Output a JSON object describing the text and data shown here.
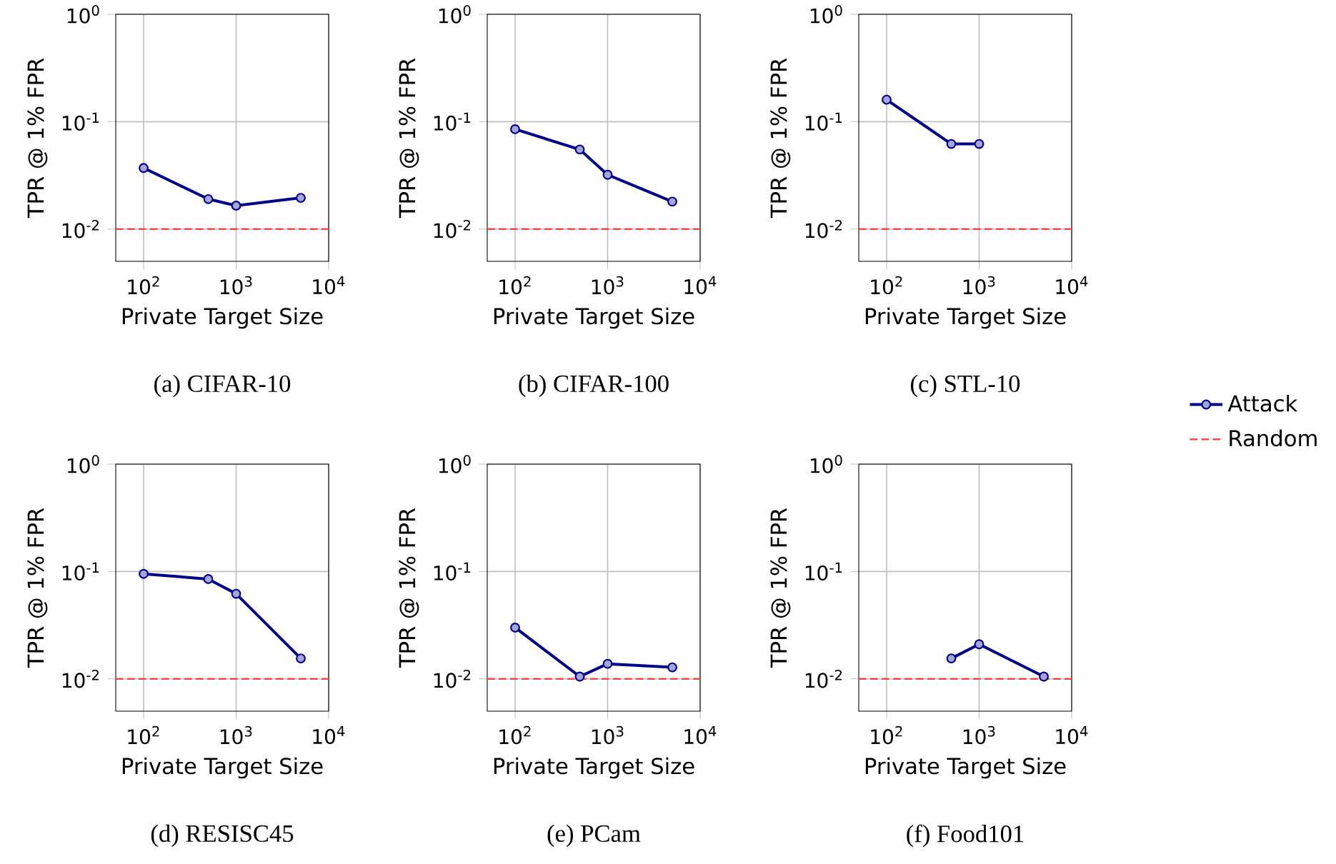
{
  "chart_data": [
    {
      "type": "line",
      "title": "(a) CIFAR-10",
      "xlabel": "Private Target Size",
      "ylabel": "TPR @ 1% FPR",
      "x": [
        100,
        500,
        1000,
        5000
      ],
      "series": [
        {
          "color": "#00008b",
          "values": [
            0.037,
            0.019,
            0.0165,
            0.0195
          ]
        }
      ],
      "xlim": [
        50,
        10000
      ],
      "ylim": [
        0.005,
        1
      ],
      "xticks": [
        {
          "value": 100,
          "label": "10$^{2}$"
        },
        {
          "value": 1000,
          "label": "10$^{3}$"
        },
        {
          "value": 10000,
          "label": "10$^{4}$"
        }
      ],
      "yticks": [
        {
          "value": 0.01,
          "label": "10$^{-2}$"
        },
        {
          "value": 0.1,
          "label": "10$^{-1}$"
        },
        {
          "value": 1,
          "label": "10$^{0}$"
        }
      ],
      "log": "xy",
      "grid": true,
      "marker": "circle",
      "ref_lines": [
        {
          "axis": "y",
          "value": 0.01,
          "color": "#f04a4a",
          "line_style": "dashed"
        }
      ]
    },
    {
      "type": "line",
      "title": "(b) CIFAR-100",
      "xlabel": "Private Target Size",
      "ylabel": "TPR @ 1% FPR",
      "x": [
        100,
        500,
        1000,
        5000
      ],
      "series": [
        {
          "color": "#00008b",
          "values": [
            0.085,
            0.055,
            0.032,
            0.018
          ]
        }
      ],
      "xlim": [
        50,
        10000
      ],
      "ylim": [
        0.005,
        1
      ],
      "xticks": [
        {
          "value": 100,
          "label": "10$^{2}$"
        },
        {
          "value": 1000,
          "label": "10$^{3}$"
        },
        {
          "value": 10000,
          "label": "10$^{4}$"
        }
      ],
      "yticks": [
        {
          "value": 0.01,
          "label": "10$^{-2}$"
        },
        {
          "value": 0.1,
          "label": "10$^{-1}$"
        },
        {
          "value": 1,
          "label": "10$^{0}$"
        }
      ],
      "log": "xy",
      "grid": true,
      "marker": "circle",
      "ref_lines": [
        {
          "axis": "y",
          "value": 0.01,
          "color": "#f04a4a",
          "line_style": "dashed"
        }
      ]
    },
    {
      "type": "line",
      "title": "(c) STL-10",
      "xlabel": "Private Target Size",
      "ylabel": "TPR @ 1% FPR",
      "series": [
        {
          "name": "Attack",
          "color": "#00008b",
          "x": [
            100,
            500,
            1000
          ],
          "values": [
            0.16,
            0.062,
            0.062
          ]
        }
      ],
      "xlim": [
        50,
        10000
      ],
      "ylim": [
        0.005,
        1
      ],
      "xticks": [
        {
          "value": 100,
          "label": "10$^{2}$"
        },
        {
          "value": 1000,
          "label": "10$^{3}$"
        },
        {
          "value": 10000,
          "label": "10$^{4}$"
        }
      ],
      "yticks": [
        {
          "value": 0.01,
          "label": "10$^{-2}$"
        },
        {
          "value": 0.1,
          "label": "10$^{-1}$"
        },
        {
          "value": 1,
          "label": "10$^{0}$"
        }
      ],
      "log": "xy",
      "grid": true,
      "marker": "circle",
      "legend": "right",
      "ref_lines": [
        {
          "axis": "y",
          "value": 0.01,
          "color": "#f04a4a",
          "line_style": "dashed",
          "label": "Random"
        }
      ]
    },
    {
      "type": "line",
      "title": "(d) RESISC45",
      "xlabel": "Private Target Size",
      "ylabel": "TPR @ 1% FPR",
      "x": [
        100,
        500,
        1000,
        5000
      ],
      "series": [
        {
          "color": "#00008b",
          "values": [
            0.095,
            0.085,
            0.062,
            0.0155
          ]
        }
      ],
      "xlim": [
        50,
        10000
      ],
      "ylim": [
        0.005,
        1
      ],
      "xticks": [
        {
          "value": 100,
          "label": "10$^{2}$"
        },
        {
          "value": 1000,
          "label": "10$^{3}$"
        },
        {
          "value": 10000,
          "label": "10$^{4}$"
        }
      ],
      "yticks": [
        {
          "value": 0.01,
          "label": "10$^{-2}$"
        },
        {
          "value": 0.1,
          "label": "10$^{-1}$"
        },
        {
          "value": 1,
          "label": "10$^{0}$"
        }
      ],
      "log": "xy",
      "grid": true,
      "marker": "circle",
      "ref_lines": [
        {
          "axis": "y",
          "value": 0.01,
          "color": "#f04a4a",
          "line_style": "dashed"
        }
      ]
    },
    {
      "type": "line",
      "title": "(e) PCam",
      "xlabel": "Private Target Size",
      "ylabel": "TPR @ 1% FPR",
      "x": [
        100,
        500,
        1000,
        5000
      ],
      "series": [
        {
          "color": "#00008b",
          "values": [
            0.03,
            0.0105,
            0.0138,
            0.0128
          ]
        }
      ],
      "xlim": [
        50,
        10000
      ],
      "ylim": [
        0.005,
        1
      ],
      "xticks": [
        {
          "value": 100,
          "label": "10$^{2}$"
        },
        {
          "value": 1000,
          "label": "10$^{3}$"
        },
        {
          "value": 10000,
          "label": "10$^{4}$"
        }
      ],
      "yticks": [
        {
          "value": 0.01,
          "label": "10$^{-2}$"
        },
        {
          "value": 0.1,
          "label": "10$^{-1}$"
        },
        {
          "value": 1,
          "label": "10$^{0}$"
        }
      ],
      "log": "xy",
      "grid": true,
      "marker": "circle",
      "ref_lines": [
        {
          "axis": "y",
          "value": 0.01,
          "color": "#f04a4a",
          "line_style": "dashed"
        }
      ]
    },
    {
      "type": "line",
      "title": "(f) Food101",
      "xlabel": "Private Target Size",
      "ylabel": "TPR @ 1% FPR",
      "series": [
        {
          "color": "#00008b",
          "x": [
            500,
            1000,
            5000
          ],
          "values": [
            0.0155,
            0.021,
            0.0105
          ]
        }
      ],
      "xlim": [
        50,
        10000
      ],
      "ylim": [
        0.005,
        1
      ],
      "xticks": [
        {
          "value": 100,
          "label": "10$^{2}$"
        },
        {
          "value": 1000,
          "label": "10$^{3}$"
        },
        {
          "value": 10000,
          "label": "10$^{4}$"
        }
      ],
      "yticks": [
        {
          "value": 0.01,
          "label": "10$^{-2}$"
        },
        {
          "value": 0.1,
          "label": "10$^{-1}$"
        },
        {
          "value": 1,
          "label": "10$^{0}$"
        }
      ],
      "log": "xy",
      "grid": true,
      "marker": "circle",
      "ref_lines": [
        {
          "axis": "y",
          "value": 0.01,
          "color": "#f04a4a",
          "line_style": "dashed"
        }
      ]
    }
  ]
}
